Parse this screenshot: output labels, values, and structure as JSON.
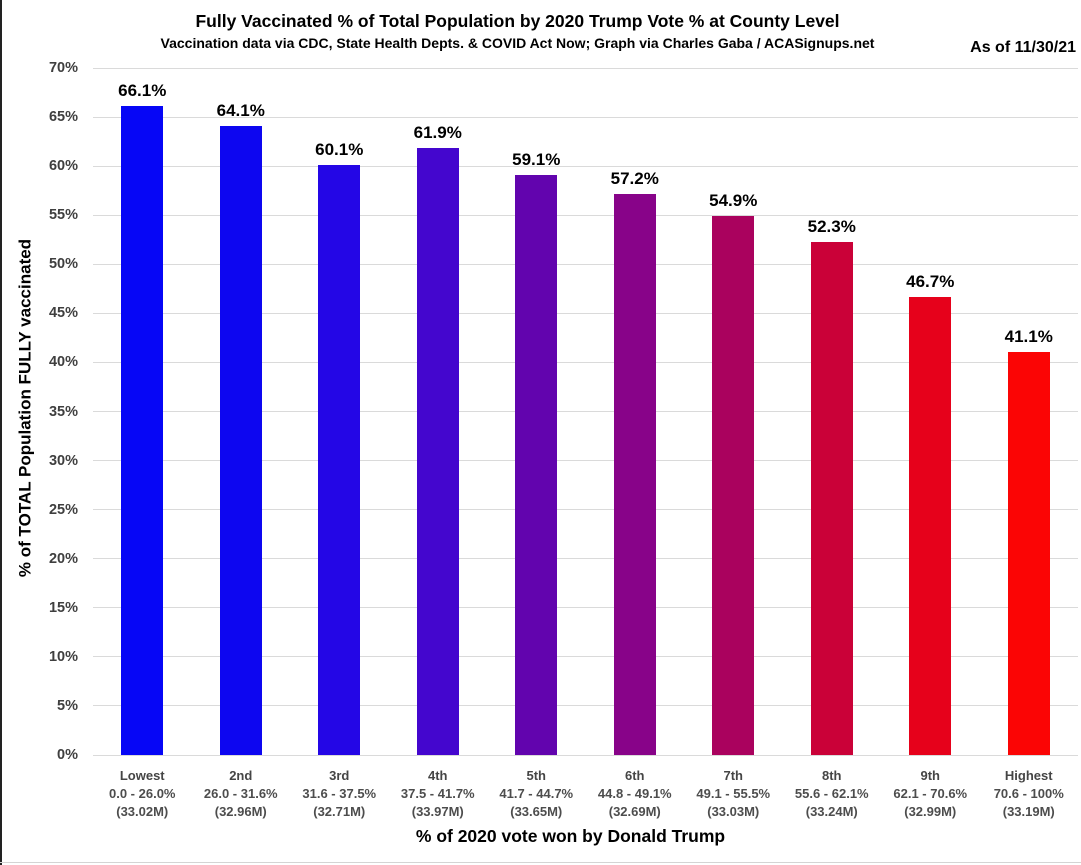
{
  "header": {
    "title": "Fully Vaccinated % of Total Population by 2020 Trump Vote % at County Level",
    "subtitle": "Vaccination data via CDC, State Health Depts. & COVID Act Now; Graph via Charles Gaba / ACASignups.net",
    "as_of": "As of 11/30/21"
  },
  "chart_data": {
    "type": "bar",
    "title": "Fully Vaccinated % of Total Population by 2020 Trump Vote % at County Level",
    "subtitle": "Vaccination data via CDC, State Health Depts. & COVID Act Now; Graph via Charles Gaba / ACASignups.net",
    "xlabel": "% of 2020 vote won by Donald Trump",
    "ylabel": "% of TOTAL Population FULLY vaccinated",
    "ylim": [
      0,
      70
    ],
    "ytick_step": 5,
    "yticks": [
      "0%",
      "5%",
      "10%",
      "15%",
      "20%",
      "25%",
      "30%",
      "35%",
      "40%",
      "45%",
      "50%",
      "55%",
      "60%",
      "65%",
      "70%"
    ],
    "grid": true,
    "legend": false,
    "categories": [
      {
        "tier": "Lowest",
        "range": "0.0 - 26.0%",
        "population": "(33.02M)"
      },
      {
        "tier": "2nd",
        "range": "26.0 - 31.6%",
        "population": "(32.96M)"
      },
      {
        "tier": "3rd",
        "range": "31.6 - 37.5%",
        "population": "(32.71M)"
      },
      {
        "tier": "4th",
        "range": "37.5 - 41.7%",
        "population": "(33.97M)"
      },
      {
        "tier": "5th",
        "range": "41.7 - 44.7%",
        "population": "(33.65M)"
      },
      {
        "tier": "6th",
        "range": "44.8 - 49.1%",
        "population": "(32.69M)"
      },
      {
        "tier": "7th",
        "range": "49.1 - 55.5%",
        "population": "(33.03M)"
      },
      {
        "tier": "8th",
        "range": "55.6 - 62.1%",
        "population": "(33.24M)"
      },
      {
        "tier": "9th",
        "range": "62.1 - 70.6%",
        "population": "(32.99M)"
      },
      {
        "tier": "Highest",
        "range": "70.6 - 100%",
        "population": "(33.19M)"
      }
    ],
    "values": [
      66.1,
      64.1,
      60.1,
      61.9,
      59.1,
      57.2,
      54.9,
      52.3,
      46.7,
      41.1
    ],
    "value_labels": [
      "66.1%",
      "64.1%",
      "60.1%",
      "61.9%",
      "59.1%",
      "57.2%",
      "54.9%",
      "52.3%",
      "46.7%",
      "41.1%"
    ],
    "bar_colors": [
      "#0606F6",
      "#0D06F0",
      "#2406E6",
      "#4406CE",
      "#6204AE",
      "#880389",
      "#AA025E",
      "#CA0138",
      "#E6011B",
      "#FB0505"
    ]
  },
  "style": {
    "grid_color": "#DADADA",
    "ytick_color": "#3F3F3F",
    "category_color": "#4D4D4D",
    "text_color": "#000000",
    "background": "#FFFFFF"
  }
}
